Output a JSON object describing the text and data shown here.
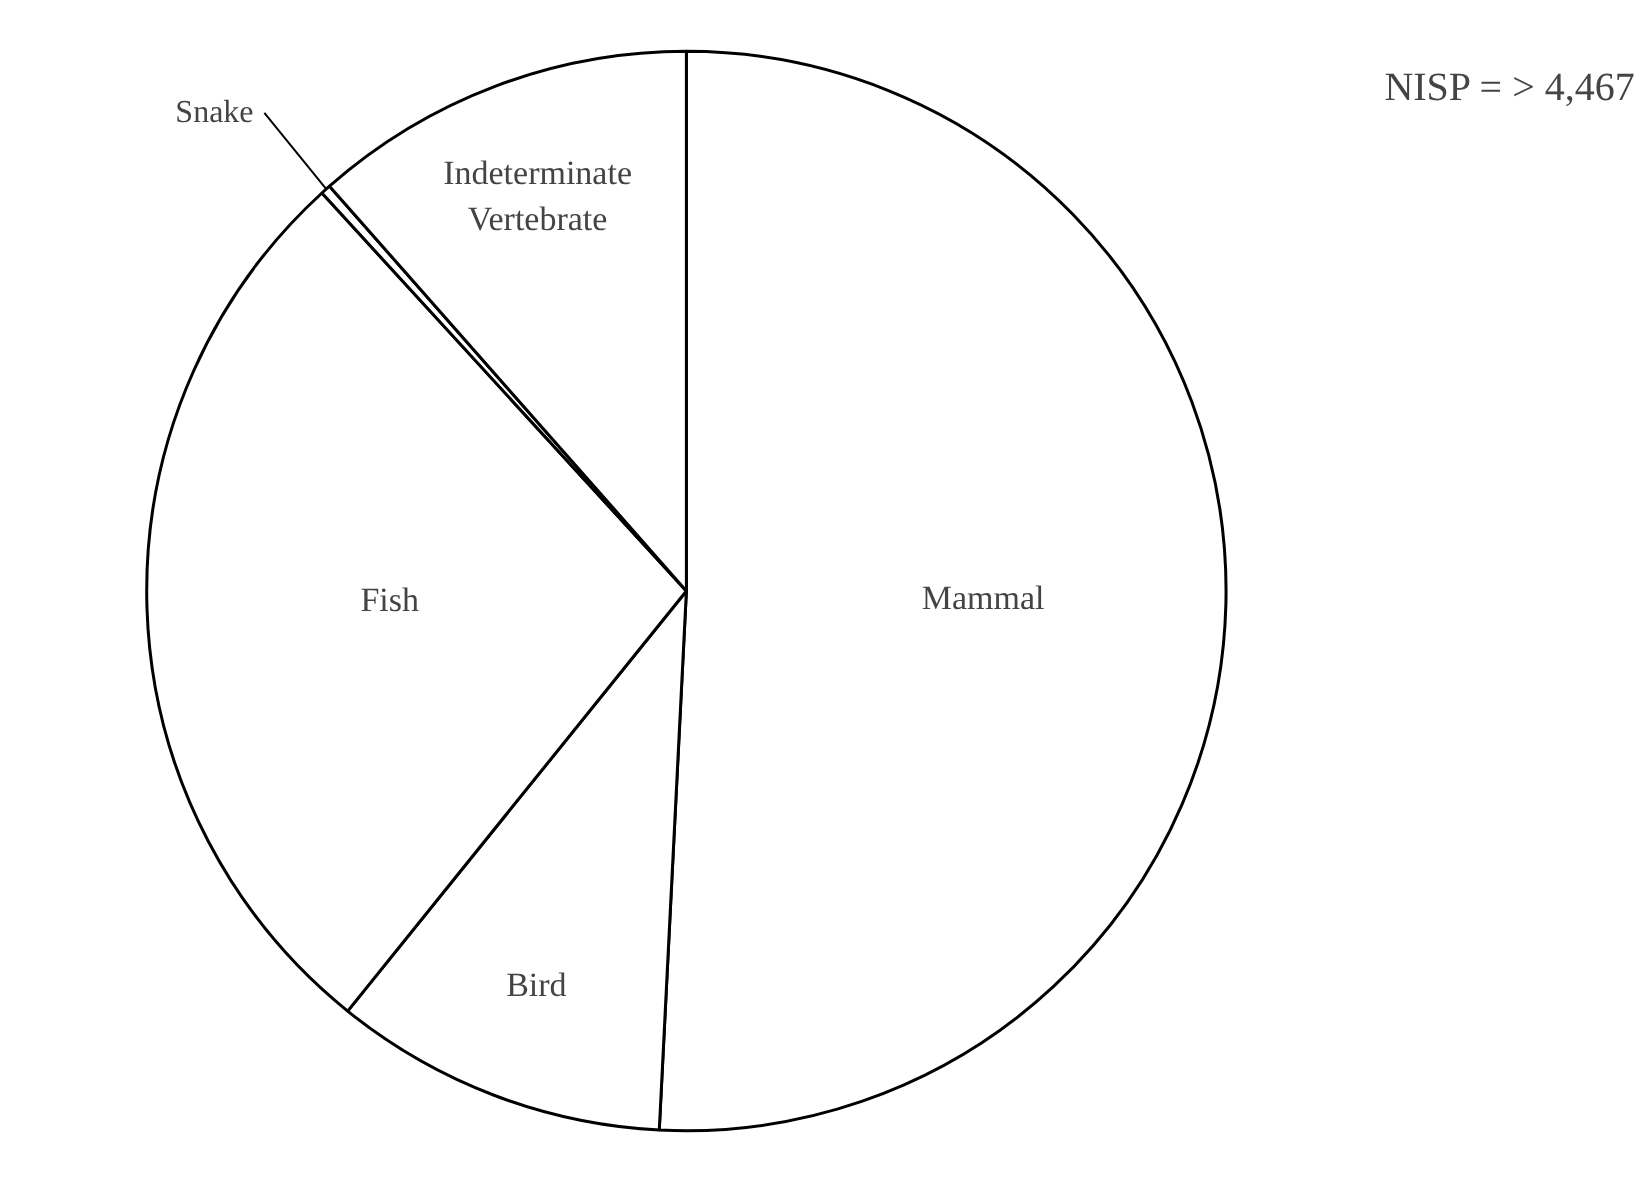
{
  "chart_data": {
    "type": "pie",
    "categories": [
      "Mammal",
      "Bird",
      "Fish",
      "Snake",
      "Indeterminate Vertebrate"
    ],
    "values": [
      50.8,
      10.0,
      27.4,
      0.3,
      11.5
    ],
    "colors": [
      "#ffffff",
      "#ffffff",
      "#ffffff",
      "#ffffff",
      "#ffffff"
    ],
    "annotations": [
      "NISP = > 4,467"
    ]
  }
}
